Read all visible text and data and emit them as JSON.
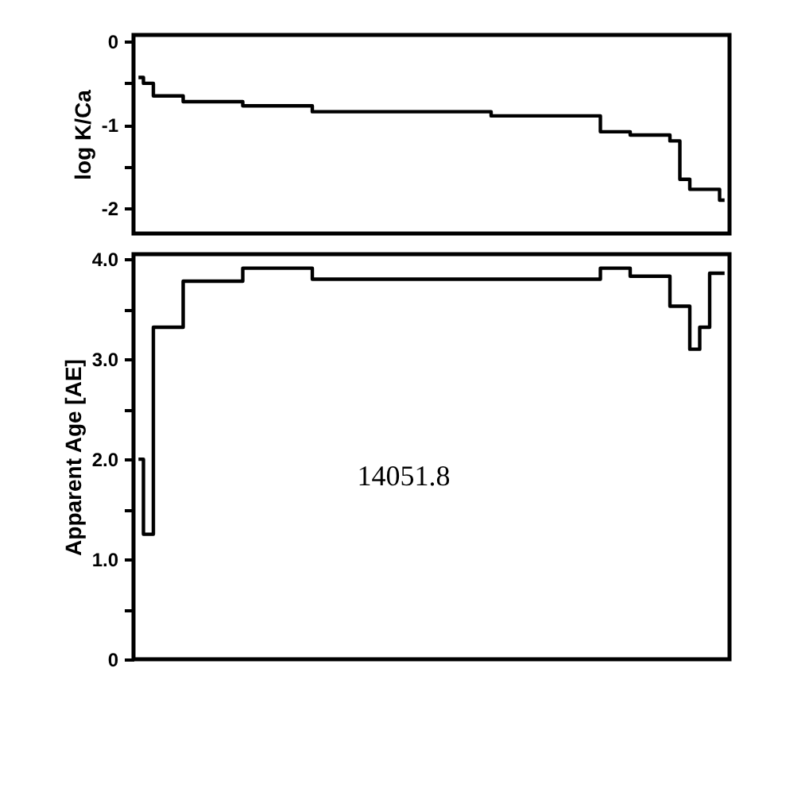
{
  "chart_data": [
    {
      "type": "step",
      "ylabel": "log K/Ca",
      "categories": [
        null,
        null,
        null,
        null,
        null,
        null,
        null,
        null,
        null,
        null,
        null,
        null,
        null,
        null,
        null,
        null,
        null,
        null,
        null,
        null,
        null,
        null,
        null,
        null,
        null,
        null,
        null,
        null,
        null,
        null,
        null,
        null,
        null,
        null,
        null,
        null,
        null,
        null,
        null,
        null,
        null,
        null,
        null,
        null,
        null,
        null,
        null,
        null,
        null,
        null,
        null,
        null,
        null,
        null,
        null,
        null,
        null,
        null,
        null,
        null
      ],
      "series": [
        {
          "color": "#000000",
          "values": [
            -0.43,
            -0.5,
            -0.65,
            -0.65,
            -0.65,
            -0.72,
            -0.72,
            -0.72,
            -0.72,
            -0.72,
            -0.72,
            -0.77,
            -0.77,
            -0.77,
            -0.77,
            -0.77,
            -0.77,
            -0.77,
            -0.84,
            -0.84,
            -0.84,
            -0.84,
            -0.84,
            -0.84,
            -0.84,
            -0.84,
            -0.84,
            -0.84,
            -0.84,
            -0.84,
            -0.84,
            -0.84,
            -0.84,
            -0.84,
            -0.84,
            -0.84,
            -0.89,
            -0.89,
            -0.89,
            -0.89,
            -0.89,
            -0.89,
            -0.89,
            -0.89,
            -0.89,
            -0.89,
            -0.89,
            -1.08,
            -1.08,
            -1.08,
            -1.12,
            -1.12,
            -1.12,
            -1.12,
            -1.19,
            -1.65,
            -1.77,
            -1.77,
            -1.77,
            -1.9
          ]
        }
      ],
      "ylim": [
        -2.3,
        0.08
      ],
      "yticks": [
        0,
        {
          "value": -0.5,
          "label": null
        },
        -1,
        {
          "value": -1.5,
          "label": null
        },
        -2
      ],
      "tick_labels": "y",
      "grid": false,
      "line_style": "solid",
      "marker": "none"
    },
    {
      "type": "step",
      "ylabel": "Apparent Age [AE]",
      "annotations": [
        "14051.8"
      ],
      "categories": [
        null,
        null,
        null,
        null,
        null,
        null,
        null,
        null,
        null,
        null,
        null,
        null,
        null,
        null,
        null,
        null,
        null,
        null,
        null,
        null,
        null,
        null,
        null,
        null,
        null,
        null,
        null,
        null,
        null,
        null,
        null,
        null,
        null,
        null,
        null,
        null,
        null,
        null,
        null,
        null,
        null,
        null,
        null,
        null,
        null,
        null,
        null,
        null,
        null,
        null,
        null,
        null,
        null,
        null,
        null,
        null,
        null,
        null,
        null,
        null
      ],
      "series": [
        {
          "color": "#000000",
          "values": [
            2.0,
            1.25,
            3.32,
            3.32,
            3.32,
            3.78,
            3.78,
            3.78,
            3.78,
            3.78,
            3.78,
            3.91,
            3.91,
            3.91,
            3.91,
            3.91,
            3.91,
            3.91,
            3.8,
            3.8,
            3.8,
            3.8,
            3.8,
            3.8,
            3.8,
            3.8,
            3.8,
            3.8,
            3.8,
            3.8,
            3.8,
            3.8,
            3.8,
            3.8,
            3.8,
            3.8,
            3.8,
            3.8,
            3.8,
            3.8,
            3.8,
            3.8,
            3.8,
            3.8,
            3.8,
            3.8,
            3.8,
            3.91,
            3.91,
            3.91,
            3.83,
            3.83,
            3.83,
            3.83,
            3.53,
            3.53,
            3.1,
            3.32,
            3.86,
            3.86
          ]
        }
      ],
      "ylim": [
        0,
        4.05
      ],
      "yticks": [
        {
          "value": 0,
          "label": "0"
        },
        {
          "value": 0.5,
          "label": null
        },
        {
          "value": 1,
          "label": "1.0"
        },
        {
          "value": 1.5,
          "label": null
        },
        {
          "value": 2,
          "label": "2.0"
        },
        {
          "value": 2.5,
          "label": null
        },
        {
          "value": 3,
          "label": "3.0"
        },
        {
          "value": 3.5,
          "label": null
        },
        {
          "value": 4,
          "label": "4.0"
        }
      ],
      "tick_labels": "y",
      "grid": false,
      "line_style": "solid",
      "marker": "none"
    }
  ]
}
